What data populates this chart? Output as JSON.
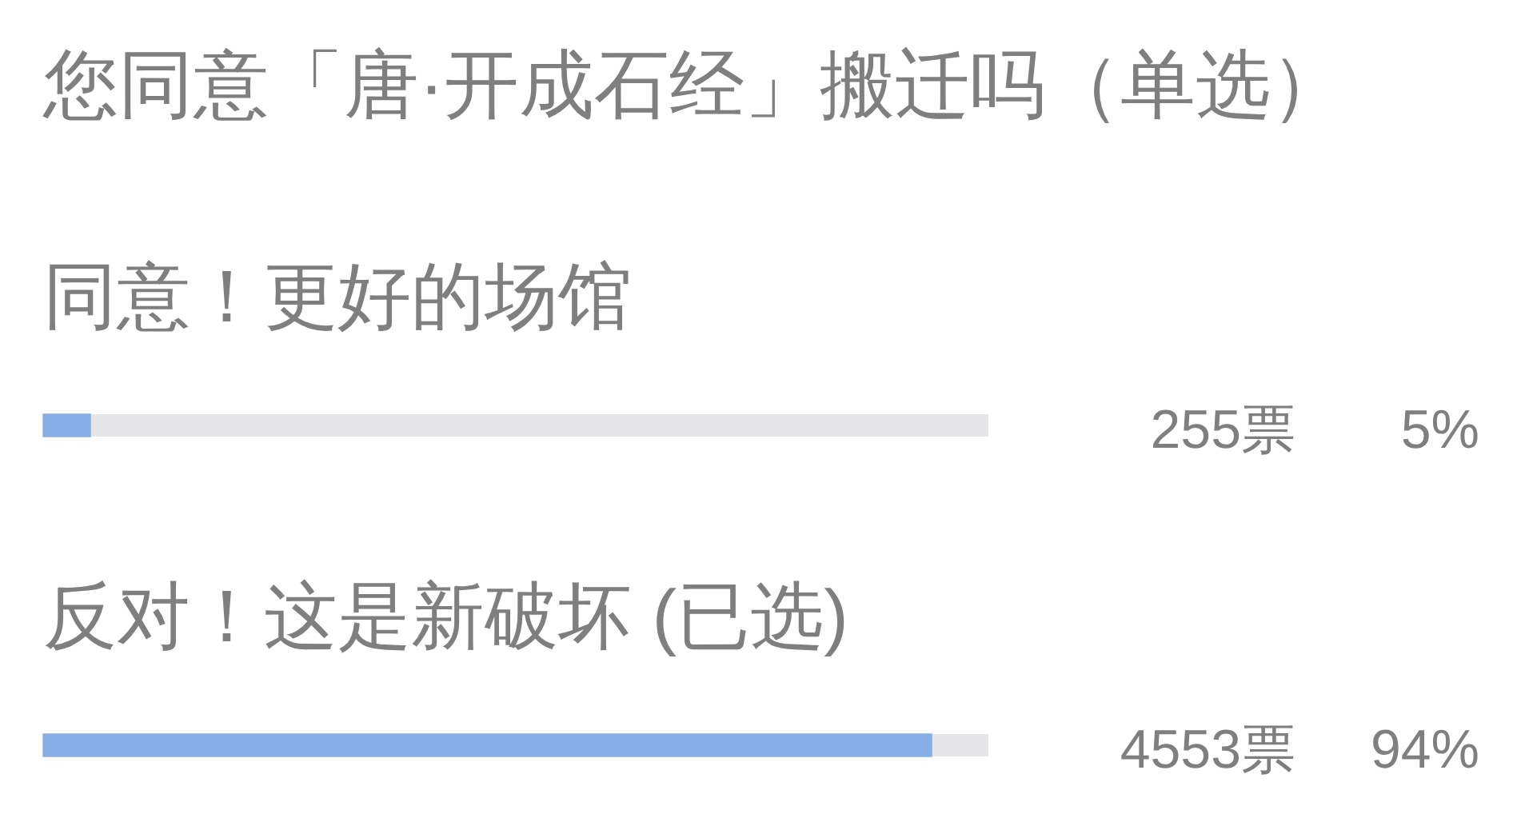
{
  "chart_data": {
    "type": "bar",
    "orientation": "horizontal",
    "title": "您同意「唐·开成石经」搬迁吗（单选）",
    "categories": [
      "同意！更好的场馆",
      "反对！这是新破坏 (已选)"
    ],
    "values": [
      5,
      94
    ],
    "color": "#87ade6",
    "value_labels": [
      "5%",
      "94%"
    ],
    "xlim": [
      0,
      100
    ],
    "tick_labels": "y",
    "legend": false,
    "annotations": [
      "255票",
      "4553票"
    ]
  }
}
